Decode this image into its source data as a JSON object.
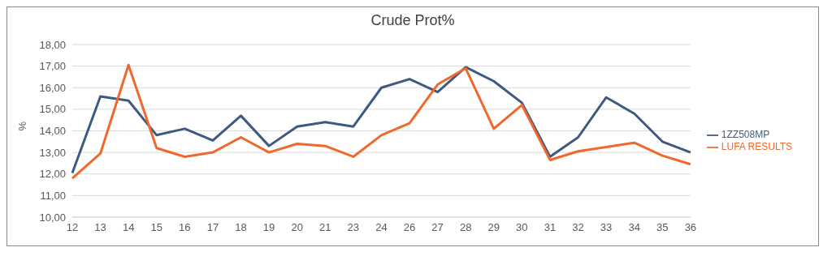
{
  "chart_data": {
    "type": "line",
    "title": "Crude Prot%",
    "ylabel": "%",
    "categories": [
      "12",
      "13",
      "14",
      "15",
      "16",
      "17",
      "18",
      "19",
      "20",
      "21",
      "23",
      "24",
      "26",
      "27",
      "28",
      "29",
      "30",
      "31",
      "32",
      "33",
      "34",
      "35",
      "36"
    ],
    "series": [
      {
        "name": "1ZZ508MP",
        "color": "#3f5a80",
        "values": [
          12.05,
          15.6,
          15.4,
          13.8,
          14.1,
          13.55,
          14.7,
          13.3,
          14.2,
          14.4,
          14.2,
          16.0,
          16.4,
          15.8,
          16.95,
          16.3,
          15.3,
          12.8,
          13.7,
          15.55,
          14.8,
          13.5,
          13.0
        ]
      },
      {
        "name": "LUFA RESULTS",
        "color": "#f0682c",
        "values": [
          11.8,
          12.95,
          17.05,
          13.2,
          12.8,
          13.0,
          13.7,
          13.0,
          13.4,
          13.3,
          12.8,
          13.8,
          14.35,
          16.15,
          16.9,
          14.1,
          15.2,
          12.65,
          13.05,
          13.25,
          13.45,
          12.85,
          12.45
        ]
      }
    ],
    "ylim": [
      10,
      18
    ],
    "yticks": [
      {
        "value": 10,
        "label": "10,00"
      },
      {
        "value": 11,
        "label": "11,00"
      },
      {
        "value": 12,
        "label": "12,00"
      },
      {
        "value": 13,
        "label": "13,00"
      },
      {
        "value": 14,
        "label": "14,00"
      },
      {
        "value": 15,
        "label": "15,00"
      },
      {
        "value": 16,
        "label": "16,00"
      },
      {
        "value": 17,
        "label": "17,00"
      },
      {
        "value": 18,
        "label": "18,00"
      }
    ],
    "grid": "y",
    "legend": "right",
    "marker": "none",
    "line_style": "solid"
  }
}
